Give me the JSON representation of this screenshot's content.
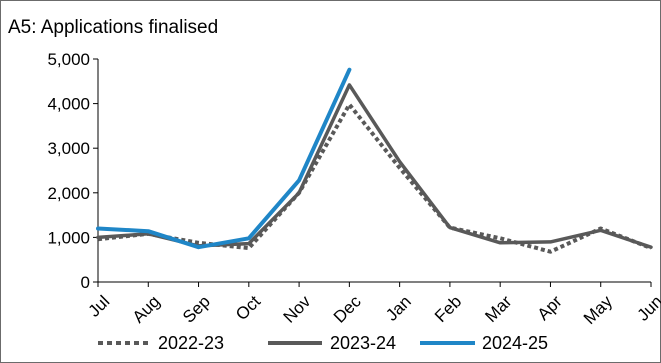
{
  "chart_data": {
    "type": "line",
    "title": "A5: Applications finalised",
    "xlabel": "",
    "ylabel": "",
    "categories": [
      "Jul",
      "Aug",
      "Sep",
      "Oct",
      "Nov",
      "Dec",
      "Jan",
      "Feb",
      "Mar",
      "Apr",
      "May",
      "Jun"
    ],
    "y_ticks": [
      "0",
      "1,000",
      "2,000",
      "3,000",
      "4,000",
      "5,000"
    ],
    "ylim": [
      0,
      5000
    ],
    "grid": false,
    "legend_position": "bottom",
    "series": [
      {
        "name": "2022-23",
        "style": "dotted",
        "color": "#595959",
        "values": [
          960,
          1080,
          880,
          760,
          2000,
          3980,
          2560,
          1220,
          980,
          680,
          1200,
          760
        ]
      },
      {
        "name": "2023-24",
        "style": "solid",
        "color": "#595959",
        "values": [
          1000,
          1080,
          810,
          860,
          2000,
          4420,
          2700,
          1220,
          880,
          900,
          1160,
          780
        ]
      },
      {
        "name": "2024-25",
        "style": "solid",
        "color": "#1f86c7",
        "values": [
          1200,
          1140,
          780,
          980,
          2280,
          4760,
          null,
          null,
          null,
          null,
          null,
          null
        ]
      }
    ]
  }
}
